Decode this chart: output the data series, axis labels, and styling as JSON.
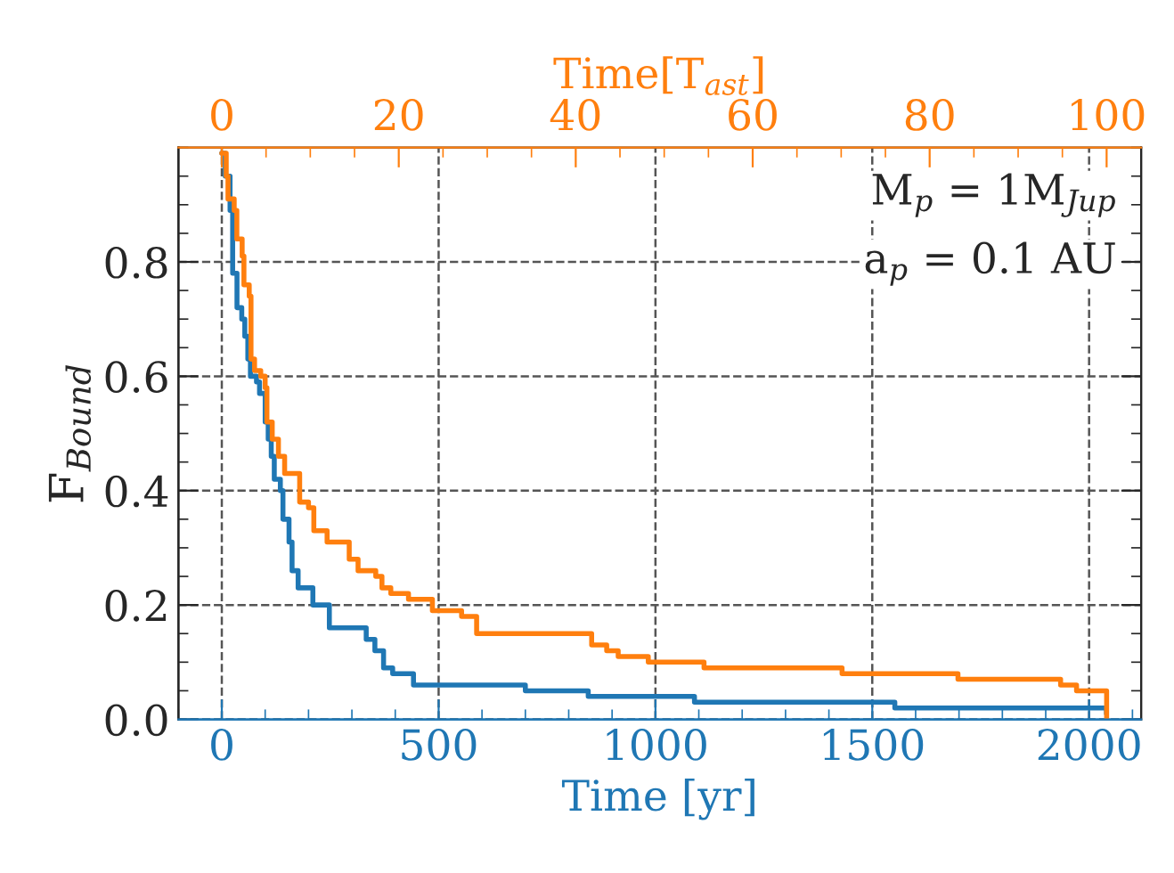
{
  "chart_data": {
    "type": "step",
    "xlabel": "Time [yr]",
    "x2label": "Time[T$_{ast}$]",
    "ylabel": "F$_{Bound}$",
    "annotations": [
      "M$_{p}$ = 1M$_{Jup}$",
      "a$_{p}$ = 0.1 AU"
    ],
    "xlim": [
      -100,
      2120
    ],
    "xticks": [
      0,
      500,
      1000,
      1500,
      2000
    ],
    "x2lim": [
      -4.9,
      103.9
    ],
    "x2ticks": [
      0,
      20,
      40,
      60,
      80,
      100
    ],
    "ylim": [
      0,
      1.0
    ],
    "yticks": [
      {
        "value": 0,
        "label": "0.0"
      },
      {
        "value": 0.2,
        "label": "0.2"
      },
      {
        "value": 0.4,
        "label": "0.4"
      },
      {
        "value": 0.6,
        "label": "0.6"
      },
      {
        "value": 0.8,
        "label": "0.8"
      }
    ],
    "grid": true,
    "legend": false,
    "line_style": "solid",
    "marker": "none",
    "series": [
      {
        "color": "#1f77b4",
        "x": [
          0,
          8,
          19,
          25,
          35,
          46,
          53,
          60,
          66,
          80,
          87,
          100,
          107,
          114,
          121,
          135,
          141,
          155,
          162,
          176,
          210,
          248,
          333,
          353,
          373,
          394,
          442,
          700,
          845,
          1090,
          1552,
          2040
        ],
        "values": [
          0.99,
          0.95,
          0.89,
          0.78,
          0.72,
          0.7,
          0.67,
          0.63,
          0.6,
          0.59,
          0.57,
          0.52,
          0.49,
          0.46,
          0.42,
          0.4,
          0.35,
          0.31,
          0.26,
          0.23,
          0.2,
          0.16,
          0.14,
          0.12,
          0.09,
          0.08,
          0.06,
          0.05,
          0.04,
          0.03,
          0.02,
          0.01
        ]
      },
      {
        "color": "#ff7f0e",
        "axis": "x2",
        "x": [
          0,
          0.5,
          0.7,
          1.4,
          1.7,
          2.3,
          2.5,
          3.1,
          3.3,
          3.7,
          4.4,
          4.9,
          5.1,
          5.7,
          6.4,
          7.1,
          8.8,
          9.8,
          10.4,
          11.9,
          14.4,
          15.4,
          17.4,
          18.1,
          19.1,
          21.1,
          23.8,
          27.1,
          28.8,
          41.8,
          43.5,
          44.8,
          48.2,
          54.5,
          70.1,
          83.2,
          94.8,
          96.6,
          100
        ],
        "values": [
          0.99,
          0.95,
          0.91,
          0.89,
          0.84,
          0.81,
          0.76,
          0.74,
          0.63,
          0.61,
          0.6,
          0.58,
          0.52,
          0.49,
          0.46,
          0.43,
          0.38,
          0.37,
          0.33,
          0.31,
          0.28,
          0.26,
          0.25,
          0.23,
          0.22,
          0.21,
          0.19,
          0.18,
          0.15,
          0.13,
          0.12,
          0.11,
          0.1,
          0.09,
          0.08,
          0.07,
          0.06,
          0.05,
          0.0
        ]
      }
    ]
  }
}
